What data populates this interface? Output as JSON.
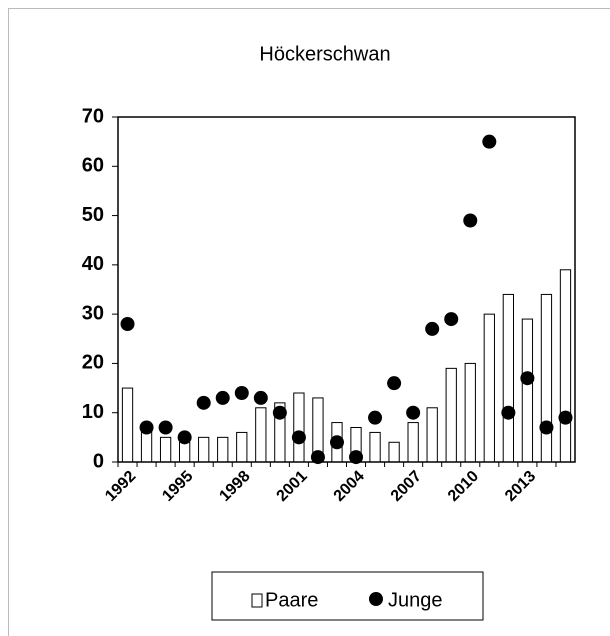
{
  "chart_data": {
    "type": "bar",
    "title": "Höckerschwan",
    "categories": [
      "1992",
      null,
      null,
      "1995",
      null,
      null,
      "1998",
      null,
      null,
      "2001",
      null,
      null,
      "2004",
      null,
      null,
      "2007",
      null,
      null,
      "2010",
      null,
      null,
      "2013",
      null,
      null
    ],
    "series": [
      {
        "name": "Paare",
        "type": "bar",
        "color": "#ffffff",
        "values": [
          15,
          7,
          5,
          4,
          5,
          5,
          6,
          11,
          12,
          14,
          13,
          8,
          7,
          6,
          4,
          8,
          11,
          19,
          20,
          30,
          34,
          29,
          34,
          39
        ]
      },
      {
        "name": "Junge",
        "type": "scatter",
        "color": "#000000",
        "values": [
          28,
          7,
          7,
          5,
          12,
          13,
          14,
          13,
          10,
          5,
          1,
          4,
          1,
          9,
          16,
          10,
          27,
          29,
          49,
          65,
          10,
          17,
          7,
          9
        ]
      }
    ],
    "ylim": [
      0,
      70
    ],
    "yticks": [
      0,
      10,
      20,
      30,
      40,
      50,
      60,
      70
    ],
    "legend": "bottom"
  }
}
